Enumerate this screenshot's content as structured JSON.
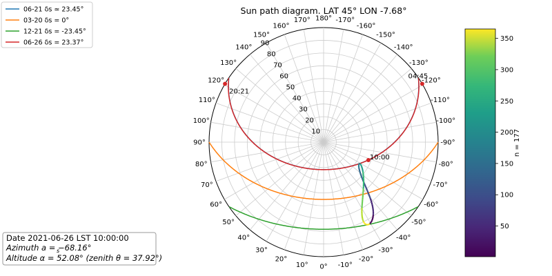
{
  "chart_data": {
    "type": "line",
    "polar": true,
    "title": "Sun path diagram. LAT 45° LON -7.68°",
    "angular_ticks": [
      "0°",
      "10°",
      "20°",
      "30°",
      "40°",
      "50°",
      "60°",
      "70°",
      "80°",
      "90°",
      "100°",
      "110°",
      "120°",
      "130°",
      "140°",
      "150°",
      "160°",
      "170°",
      "180°",
      "-170°",
      "-160°",
      "-150°",
      "-140°",
      "-130°",
      "-120°",
      "-110°",
      "-100°",
      "-90°",
      "-80°",
      "-70°",
      "-60°",
      "-50°",
      "-40°",
      "-30°",
      "-20°",
      "-10°"
    ],
    "angular_tick_values": [
      0,
      10,
      20,
      30,
      40,
      50,
      60,
      70,
      80,
      90,
      100,
      110,
      120,
      130,
      140,
      150,
      160,
      170,
      180,
      -170,
      -160,
      -150,
      -140,
      -130,
      -120,
      -110,
      -100,
      -90,
      -80,
      -70,
      -60,
      -50,
      -40,
      -30,
      -20,
      -10
    ],
    "radial_ticks": [
      "10",
      "20",
      "30",
      "40",
      "50",
      "60",
      "70",
      "80",
      "90"
    ],
    "radial_tick_values": [
      10,
      20,
      30,
      40,
      50,
      60,
      70,
      80,
      90
    ],
    "rlim": [
      0,
      90
    ],
    "grid": true,
    "legend_position": "top-left",
    "series": [
      {
        "name": "06-21 δs ≃  23.45°",
        "color": "#1f77b4",
        "declination": 23.45
      },
      {
        "name": "03-20 δs =  0°",
        "color": "#ff7f0e",
        "declination": 0
      },
      {
        "name": "12-21 δs =  -23.45°",
        "color": "#2ca02c",
        "declination": -23.45
      },
      {
        "name": "06-26 δs =  23.37°",
        "color": "#d62728",
        "declination": 23.37
      }
    ],
    "latitude": 45,
    "analemma": {
      "colorbar_label": "n = 177",
      "colorbar_ticks": [
        "50",
        "100",
        "150",
        "200",
        "250",
        "300",
        "350"
      ],
      "colorbar_tick_values": [
        50,
        100,
        150,
        200,
        250,
        300,
        350
      ],
      "colorbar_range": [
        1,
        365
      ],
      "hour": "10:00"
    },
    "annotations": [
      {
        "text": "04:45",
        "azimuth": -120.6,
        "altitude": 0
      },
      {
        "text": "20:21",
        "azimuth": 120.6,
        "altitude": 0
      },
      {
        "text": "10:00",
        "azimuth": -68.16,
        "altitude": 52.08
      }
    ],
    "info_box": {
      "line1": "Date 2021-06-26 LST 10:00:00",
      "line2": "Azimuth a  = −68.16°",
      "line2_sub": "s",
      "line3": "Altitude α = 52.08° (zenith θ = 37.92°)"
    }
  }
}
